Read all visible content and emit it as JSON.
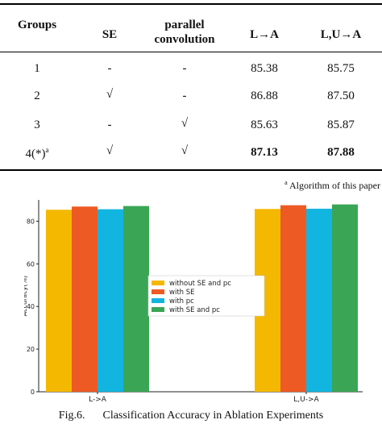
{
  "table": {
    "headers": {
      "groups": "Groups",
      "se": "SE",
      "pc_line1": "parallel",
      "pc_line2": "convolution",
      "la": "L→A",
      "lua": "L,U→A"
    },
    "rows": [
      {
        "group": "1",
        "se": "-",
        "pc": "-",
        "la": "85.38",
        "lua": "85.75"
      },
      {
        "group": "2",
        "se": "√",
        "pc": "-",
        "la": "86.88",
        "lua": "87.50"
      },
      {
        "group": "3",
        "se": "-",
        "pc": "√",
        "la": "85.63",
        "lua": "85.87"
      },
      {
        "group": "4(*)",
        "group_sup": "a",
        "se": "√",
        "pc": "√",
        "la": "87.13",
        "lua": "87.88"
      }
    ],
    "footnote_mark": "a",
    "footnote": "Algorithm of this paper"
  },
  "chart_data": {
    "type": "bar",
    "categories": [
      "L->A",
      "L,U->A"
    ],
    "category_labels": [
      "L->A",
      "L,U->A"
    ],
    "series": [
      {
        "name": "without SE and pc",
        "color": "#f5b800",
        "values": [
          85.38,
          85.75
        ]
      },
      {
        "name": "with SE",
        "color": "#ee5a24",
        "values": [
          86.88,
          87.5
        ]
      },
      {
        "name": "with pc",
        "color": "#12b5e0",
        "values": [
          85.63,
          85.87
        ]
      },
      {
        "name": "with SE and pc",
        "color": "#3aa655",
        "values": [
          87.13,
          87.88
        ]
      }
    ],
    "ylabel": "Accuracy(%)",
    "ylim": [
      0,
      90
    ],
    "yticks": [
      0,
      20,
      40,
      60,
      80
    ],
    "legend_position": "center",
    "grid": false
  },
  "caption": {
    "label": "Fig.6.",
    "text": "Classification Accuracy in Ablation Experiments"
  }
}
